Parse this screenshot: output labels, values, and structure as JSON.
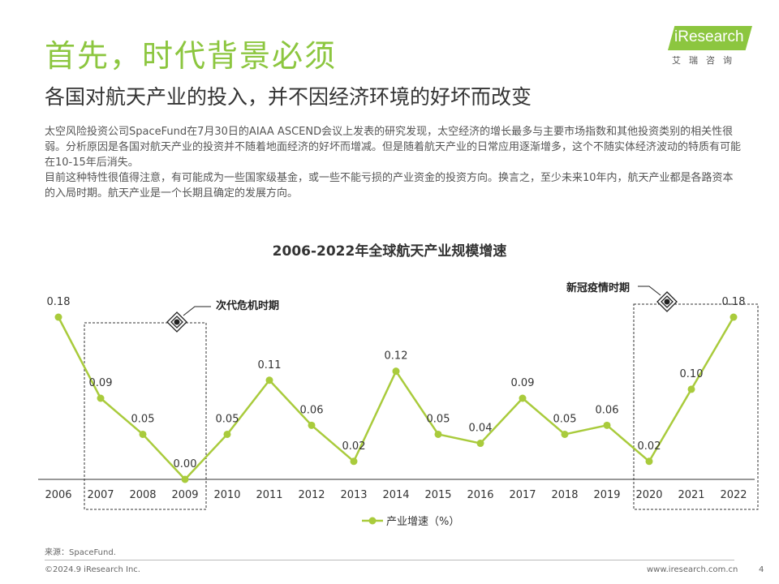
{
  "header": {
    "title": "首先，时代背景必须",
    "subtitle": "各国对航天产业的投入，并不因经济环境的好坏而改变"
  },
  "logo": {
    "wordmark": "iResearch",
    "tagline": "艾瑞咨询"
  },
  "body": {
    "paragraph1": "太空风险投资公司SpaceFund在7月30日的AIAA ASCEND会议上发表的研究发现，太空经济的增长最多与主要市场指数和其他投资类别的相关性很弱。分析原因是各国对航天产业的投资并不随着地面经济的好坏而增减。但是随着航天产业的日常应用逐渐增多，这个不随实体经济波动的特质有可能在10-15年后消失。",
    "paragraph2": "目前这种特性很值得注意，有可能成为一些国家级基金，或一些不能亏损的产业资金的投资方向。换言之，至少未来10年内，航天产业都是各路资本的入局时期。航天产业是一个长期且确定的发展方向。"
  },
  "chart_data": {
    "type": "line",
    "title": "2006-2022年全球航天产业规模增速",
    "x": [
      "2006",
      "2007",
      "2008",
      "2009",
      "2010",
      "2011",
      "2012",
      "2013",
      "2014",
      "2015",
      "2016",
      "2017",
      "2018",
      "2019",
      "2020",
      "2021",
      "2022"
    ],
    "series": [
      {
        "name": "产业增速（%）",
        "values": [
          0.18,
          0.09,
          0.05,
          0.0,
          0.05,
          0.11,
          0.06,
          0.02,
          0.12,
          0.05,
          0.04,
          0.09,
          0.05,
          0.06,
          0.02,
          0.1,
          0.18
        ],
        "labels": [
          "0.18",
          "0.09",
          "0.05",
          "0.00",
          "0.05",
          "0.11",
          "0.06",
          "0.02",
          "0.12",
          "0.05",
          "0.04",
          "0.09",
          "0.05",
          "0.06",
          "0.02",
          "0.10",
          "0.18"
        ],
        "color": "#a9cb3c"
      }
    ],
    "ylim": [
      0,
      0.2
    ],
    "xlabel": "",
    "ylabel": "",
    "grid": false,
    "legend": "bottom-center",
    "annotations": [
      {
        "label": "次代危机时期",
        "from": "2007",
        "to": "2009"
      },
      {
        "label": "新冠疫情时期",
        "from": "2020",
        "to": "2022"
      }
    ]
  },
  "footer": {
    "source": "来源：SpaceFund.",
    "copyright": "©2024.9 iResearch Inc.",
    "website": "www.iresearch.com.cn",
    "page": "4"
  }
}
